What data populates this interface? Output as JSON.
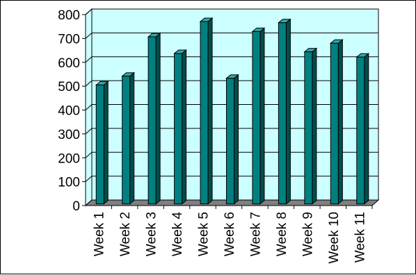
{
  "chart_data": {
    "type": "bar",
    "style": "3d-column",
    "categories": [
      "Week 1",
      "Week 2",
      "Week 3",
      "Week 4",
      "Week 5",
      "Week 6",
      "Week 7",
      "Week 8",
      "Week 9",
      "Week 10",
      "Week 11"
    ],
    "series": [
      {
        "values": [
          505,
          542,
          707,
          637,
          771,
          533,
          729,
          766,
          644,
          680,
          622
        ]
      }
    ],
    "title": "",
    "xlabel": "",
    "ylabel": "",
    "ylim": [
      0,
      800
    ],
    "yticks": [
      "0",
      "100",
      "200",
      "300",
      "400",
      "500",
      "600",
      "700",
      "800"
    ],
    "grid": true,
    "legend": "none",
    "colors": {
      "plot_background": "#ccffff",
      "bar_front": "#008080",
      "bar_side": "#004d4d",
      "bar_top": "#33a6a6",
      "floor": "#808080",
      "gridline": "#000000"
    }
  }
}
